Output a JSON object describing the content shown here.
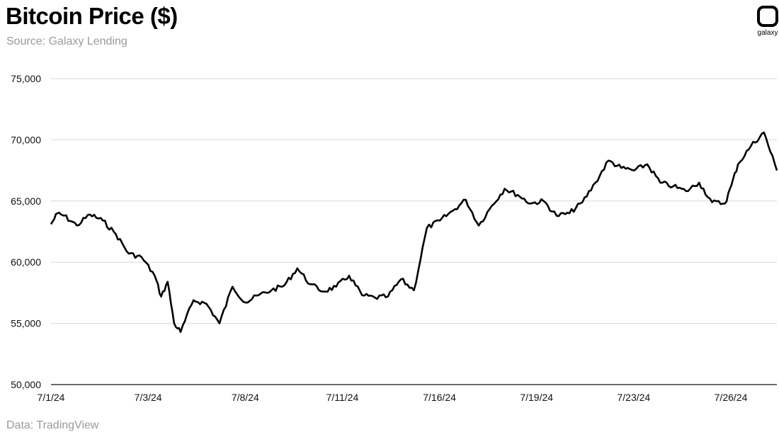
{
  "header": {
    "title": "Bitcoin Price ($)",
    "subtitle": "Source: Galaxy Lending",
    "logo_text": "galaxy"
  },
  "footer": {
    "data_source": "Data: TradingView"
  },
  "colors": {
    "line": "#000000",
    "grid": "#d9d9d9",
    "muted_text": "#9a9a9a"
  },
  "chart_data": {
    "type": "line",
    "title": "Bitcoin Price ($)",
    "xlabel": "",
    "ylabel": "",
    "ylim": [
      50000,
      75000
    ],
    "yticks": [
      50000,
      55000,
      60000,
      65000,
      70000,
      75000
    ],
    "ytick_labels": [
      "50,000",
      "55,000",
      "60,000",
      "65,000",
      "70,000",
      "75,000"
    ],
    "xlim": [
      "2024-07-01",
      "2024-07-29"
    ],
    "xtick_labels": [
      "7/1/24",
      "7/3/24",
      "7/8/24",
      "7/11/24",
      "7/16/24",
      "7/19/24",
      "7/23/24",
      "7/26/24"
    ],
    "grid": "horizontal",
    "legend": "none",
    "series": [
      {
        "x": [
          "2024-07-01 00:00",
          "2024-07-01 06:00",
          "2024-07-01 12:00",
          "2024-07-02 00:00",
          "2024-07-02 12:00",
          "2024-07-03 00:00",
          "2024-07-03 12:00",
          "2024-07-04 00:00",
          "2024-07-04 12:00",
          "2024-07-05 00:00",
          "2024-07-05 06:00",
          "2024-07-05 12:00",
          "2024-07-05 18:00",
          "2024-07-06 00:00",
          "2024-07-06 12:00",
          "2024-07-07 00:00",
          "2024-07-07 12:00",
          "2024-07-08 00:00",
          "2024-07-08 12:00",
          "2024-07-09 00:00",
          "2024-07-09 12:00",
          "2024-07-10 00:00",
          "2024-07-10 12:00",
          "2024-07-11 00:00",
          "2024-07-11 12:00",
          "2024-07-12 00:00",
          "2024-07-12 12:00",
          "2024-07-13 00:00",
          "2024-07-13 12:00",
          "2024-07-14 00:00",
          "2024-07-14 12:00",
          "2024-07-15 00:00",
          "2024-07-15 12:00",
          "2024-07-16 00:00",
          "2024-07-16 12:00",
          "2024-07-17 00:00",
          "2024-07-17 12:00",
          "2024-07-18 00:00",
          "2024-07-18 12:00",
          "2024-07-19 00:00",
          "2024-07-19 12:00",
          "2024-07-20 00:00",
          "2024-07-20 12:00",
          "2024-07-21 00:00",
          "2024-07-21 12:00",
          "2024-07-22 00:00",
          "2024-07-22 12:00",
          "2024-07-23 00:00",
          "2024-07-23 12:00",
          "2024-07-24 00:00",
          "2024-07-24 12:00",
          "2024-07-25 00:00",
          "2024-07-25 12:00",
          "2024-07-26 00:00",
          "2024-07-26 12:00",
          "2024-07-27 00:00",
          "2024-07-27 06:00",
          "2024-07-27 12:00",
          "2024-07-28 00:00",
          "2024-07-28 12:00",
          "2024-07-29 00:00"
        ],
        "values": [
          63100,
          64000,
          63800,
          63000,
          63900,
          63400,
          62300,
          60700,
          60400,
          58900,
          57200,
          58400,
          55000,
          54300,
          56900,
          56600,
          55000,
          58000,
          56700,
          57300,
          57700,
          58100,
          59500,
          58200,
          57600,
          58000,
          58900,
          57300,
          57100,
          57200,
          58600,
          57700,
          62800,
          63400,
          64200,
          65100,
          63000,
          64600,
          66000,
          65500,
          64800,
          65000,
          63800,
          64000,
          64900,
          66500,
          68300,
          67700,
          67500,
          68000,
          66500,
          66200,
          65800,
          66500,
          64900,
          64800,
          66300,
          68000,
          69500,
          70600,
          67500
        ]
      }
    ],
    "annotations": []
  }
}
